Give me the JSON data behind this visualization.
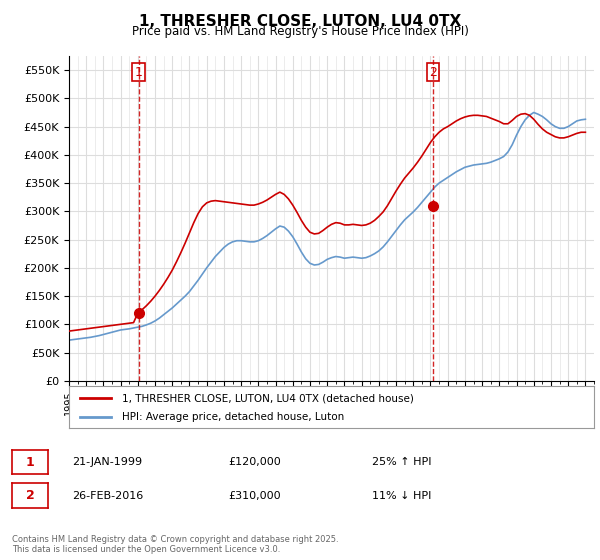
{
  "title": "1, THRESHER CLOSE, LUTON, LU4 0TX",
  "subtitle": "Price paid vs. HM Land Registry's House Price Index (HPI)",
  "ylabel_ticks": [
    "£0",
    "£50K",
    "£100K",
    "£150K",
    "£200K",
    "£250K",
    "£300K",
    "£350K",
    "£400K",
    "£450K",
    "£500K",
    "£550K"
  ],
  "ylim": [
    0,
    575000
  ],
  "xlim_start": 1995.0,
  "xlim_end": 2025.5,
  "legend_line1": "1, THRESHER CLOSE, LUTON, LU4 0TX (detached house)",
  "legend_line2": "HPI: Average price, detached house, Luton",
  "sale1_date": "21-JAN-1999",
  "sale1_price": "£120,000",
  "sale1_hpi": "25% ↑ HPI",
  "sale2_date": "26-FEB-2016",
  "sale2_price": "£310,000",
  "sale2_hpi": "11% ↓ HPI",
  "footer": "Contains HM Land Registry data © Crown copyright and database right 2025.\nThis data is licensed under the Open Government Licence v3.0.",
  "line_color_red": "#cc0000",
  "line_color_blue": "#6699cc",
  "vline_color": "#cc0000",
  "grid_color": "#dddddd",
  "bg_color": "#ffffff",
  "sale1_x": 1999.06,
  "sale2_x": 2016.15,
  "sale1_y": 120000,
  "sale2_y": 310000,
  "hpi_luton_detached_x": [
    1995.0,
    1995.25,
    1995.5,
    1995.75,
    1996.0,
    1996.25,
    1996.5,
    1996.75,
    1997.0,
    1997.25,
    1997.5,
    1997.75,
    1998.0,
    1998.25,
    1998.5,
    1998.75,
    1999.0,
    1999.25,
    1999.5,
    1999.75,
    2000.0,
    2000.25,
    2000.5,
    2000.75,
    2001.0,
    2001.25,
    2001.5,
    2001.75,
    2002.0,
    2002.25,
    2002.5,
    2002.75,
    2003.0,
    2003.25,
    2003.5,
    2003.75,
    2004.0,
    2004.25,
    2004.5,
    2004.75,
    2005.0,
    2005.25,
    2005.5,
    2005.75,
    2006.0,
    2006.25,
    2006.5,
    2006.75,
    2007.0,
    2007.25,
    2007.5,
    2007.75,
    2008.0,
    2008.25,
    2008.5,
    2008.75,
    2009.0,
    2009.25,
    2009.5,
    2009.75,
    2010.0,
    2010.25,
    2010.5,
    2010.75,
    2011.0,
    2011.25,
    2011.5,
    2011.75,
    2012.0,
    2012.25,
    2012.5,
    2012.75,
    2013.0,
    2013.25,
    2013.5,
    2013.75,
    2014.0,
    2014.25,
    2014.5,
    2014.75,
    2015.0,
    2015.25,
    2015.5,
    2015.75,
    2016.0,
    2016.25,
    2016.5,
    2016.75,
    2017.0,
    2017.25,
    2017.5,
    2017.75,
    2018.0,
    2018.25,
    2018.5,
    2018.75,
    2019.0,
    2019.25,
    2019.5,
    2019.75,
    2020.0,
    2020.25,
    2020.5,
    2020.75,
    2021.0,
    2021.25,
    2021.5,
    2021.75,
    2022.0,
    2022.25,
    2022.5,
    2022.75,
    2023.0,
    2023.25,
    2023.5,
    2023.75,
    2024.0,
    2024.25,
    2024.5,
    2024.75,
    2025.0
  ],
  "hpi_luton_detached_y": [
    72000,
    73000,
    74000,
    75000,
    76000,
    77000,
    78500,
    80000,
    82000,
    84000,
    86000,
    88000,
    90000,
    91000,
    92000,
    93500,
    95000,
    96500,
    99000,
    102000,
    106000,
    111000,
    117000,
    123000,
    129000,
    136000,
    143000,
    150000,
    158000,
    168000,
    178000,
    189000,
    200000,
    210000,
    220000,
    228000,
    236000,
    242000,
    246000,
    248000,
    248000,
    247000,
    246000,
    246000,
    248000,
    252000,
    257000,
    263000,
    269000,
    274000,
    272000,
    265000,
    255000,
    242000,
    228000,
    216000,
    208000,
    205000,
    206000,
    210000,
    215000,
    218000,
    220000,
    219000,
    217000,
    218000,
    219000,
    218000,
    217000,
    218000,
    221000,
    225000,
    230000,
    237000,
    246000,
    256000,
    266000,
    276000,
    285000,
    292000,
    299000,
    307000,
    316000,
    325000,
    334000,
    343000,
    350000,
    355000,
    360000,
    365000,
    370000,
    374000,
    378000,
    380000,
    382000,
    383000,
    384000,
    385000,
    387000,
    390000,
    393000,
    397000,
    405000,
    418000,
    435000,
    450000,
    462000,
    470000,
    475000,
    472000,
    468000,
    462000,
    455000,
    450000,
    447000,
    447000,
    450000,
    455000,
    460000,
    462000,
    463000
  ],
  "price_paid_x": [
    1995.0,
    1995.25,
    1995.5,
    1995.75,
    1996.0,
    1996.25,
    1996.5,
    1996.75,
    1997.0,
    1997.25,
    1997.5,
    1997.75,
    1998.0,
    1998.25,
    1998.5,
    1998.75,
    1999.0,
    1999.25,
    1999.5,
    1999.75,
    2000.0,
    2000.25,
    2000.5,
    2000.75,
    2001.0,
    2001.25,
    2001.5,
    2001.75,
    2002.0,
    2002.25,
    2002.5,
    2002.75,
    2003.0,
    2003.25,
    2003.5,
    2003.75,
    2004.0,
    2004.25,
    2004.5,
    2004.75,
    2005.0,
    2005.25,
    2005.5,
    2005.75,
    2006.0,
    2006.25,
    2006.5,
    2006.75,
    2007.0,
    2007.25,
    2007.5,
    2007.75,
    2008.0,
    2008.25,
    2008.5,
    2008.75,
    2009.0,
    2009.25,
    2009.5,
    2009.75,
    2010.0,
    2010.25,
    2010.5,
    2010.75,
    2011.0,
    2011.25,
    2011.5,
    2011.75,
    2012.0,
    2012.25,
    2012.5,
    2012.75,
    2013.0,
    2013.25,
    2013.5,
    2013.75,
    2014.0,
    2014.25,
    2014.5,
    2014.75,
    2015.0,
    2015.25,
    2015.5,
    2015.75,
    2016.0,
    2016.25,
    2016.5,
    2016.75,
    2017.0,
    2017.25,
    2017.5,
    2017.75,
    2018.0,
    2018.25,
    2018.5,
    2018.75,
    2019.0,
    2019.25,
    2019.5,
    2019.75,
    2020.0,
    2020.25,
    2020.5,
    2020.75,
    2021.0,
    2021.25,
    2021.5,
    2021.75,
    2022.0,
    2022.25,
    2022.5,
    2022.75,
    2023.0,
    2023.25,
    2023.5,
    2023.75,
    2024.0,
    2024.25,
    2024.5,
    2024.75,
    2025.0
  ],
  "price_paid_y": [
    88000,
    89000,
    90000,
    91000,
    92000,
    93000,
    94000,
    95000,
    96000,
    97000,
    98000,
    99000,
    100000,
    101000,
    102000,
    103000,
    120000,
    126000,
    133000,
    141000,
    150000,
    160000,
    171000,
    183000,
    196000,
    211000,
    227000,
    244000,
    262000,
    280000,
    296000,
    308000,
    315000,
    318000,
    319000,
    318000,
    317000,
    316000,
    315000,
    314000,
    313000,
    312000,
    311000,
    311000,
    313000,
    316000,
    320000,
    325000,
    330000,
    334000,
    330000,
    322000,
    311000,
    298000,
    284000,
    272000,
    263000,
    260000,
    261000,
    266000,
    272000,
    277000,
    280000,
    279000,
    276000,
    276000,
    277000,
    276000,
    275000,
    276000,
    279000,
    284000,
    291000,
    299000,
    310000,
    323000,
    336000,
    348000,
    359000,
    368000,
    377000,
    387000,
    398000,
    410000,
    422000,
    432000,
    440000,
    446000,
    450000,
    455000,
    460000,
    464000,
    467000,
    469000,
    470000,
    470000,
    469000,
    468000,
    465000,
    462000,
    459000,
    455000,
    455000,
    461000,
    468000,
    472000,
    473000,
    470000,
    463000,
    454000,
    446000,
    440000,
    436000,
    432000,
    430000,
    430000,
    432000,
    435000,
    438000,
    440000,
    440000
  ]
}
